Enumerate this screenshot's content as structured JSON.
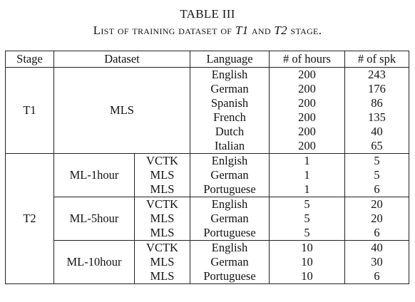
{
  "caption": {
    "table_number": "TABLE III",
    "title_before": "List of training dataset of ",
    "t1": "T1",
    "and": " and ",
    "t2": "T2",
    "title_after": " stage."
  },
  "headers": {
    "stage": "Stage",
    "dataset": "Dataset",
    "language": "Language",
    "hours": "# of hours",
    "spk": "# of spk"
  },
  "t1": {
    "stage": "T1",
    "dataset": "MLS",
    "rows": [
      {
        "language": "English",
        "hours": "200",
        "spk": "243"
      },
      {
        "language": "German",
        "hours": "200",
        "spk": "176"
      },
      {
        "language": "Spanish",
        "hours": "200",
        "spk": "86"
      },
      {
        "language": "French",
        "hours": "200",
        "spk": "135"
      },
      {
        "language": "Dutch",
        "hours": "200",
        "spk": "40"
      },
      {
        "language": "Italian",
        "hours": "200",
        "spk": "65"
      }
    ]
  },
  "t2": {
    "stage": "T2",
    "groups": [
      {
        "name": "ML-1hour",
        "rows": [
          {
            "corpus": "VCTK",
            "language": "Enlgish",
            "hours": "1",
            "spk": "5"
          },
          {
            "corpus": "MLS",
            "language": "German",
            "hours": "1",
            "spk": "5"
          },
          {
            "corpus": "MLS",
            "language": "Portuguese",
            "hours": "1",
            "spk": "6"
          }
        ]
      },
      {
        "name": "ML-5hour",
        "rows": [
          {
            "corpus": "VCTK",
            "language": "English",
            "hours": "5",
            "spk": "20"
          },
          {
            "corpus": "MLS",
            "language": "German",
            "hours": "5",
            "spk": "20"
          },
          {
            "corpus": "MLS",
            "language": "Portuguese",
            "hours": "5",
            "spk": "6"
          }
        ]
      },
      {
        "name": "ML-10hour",
        "rows": [
          {
            "corpus": "VCTK",
            "language": "English",
            "hours": "10",
            "spk": "40"
          },
          {
            "corpus": "MLS",
            "language": "German",
            "hours": "10",
            "spk": "30"
          },
          {
            "corpus": "MLS",
            "language": "Portuguese",
            "hours": "10",
            "spk": "6"
          }
        ]
      }
    ]
  }
}
